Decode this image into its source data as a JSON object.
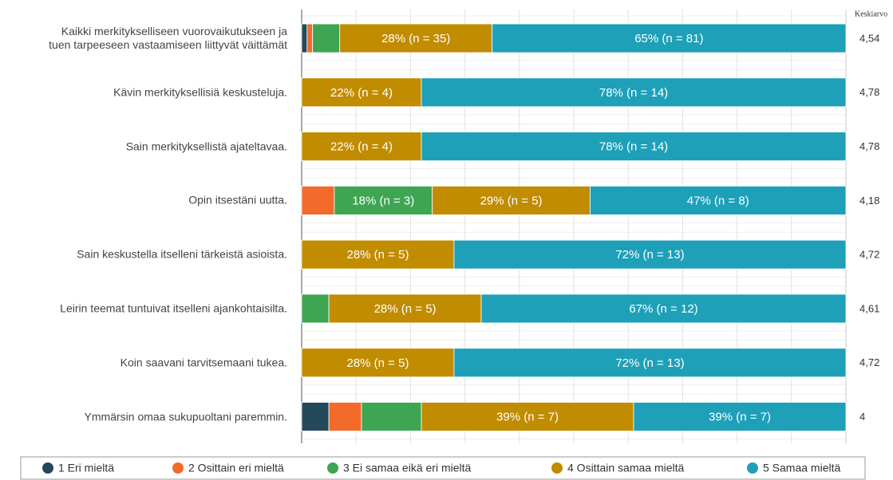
{
  "chart_data": {
    "type": "stacked-bar-horizontal",
    "categories": [
      "Kaikki merkitykselliseen vuorovaikutukseen ja\ntuen tarpeeseen vastaamiseen liittyvät väittämät",
      "Kävin merkityksellisiä keskusteluja.",
      "Sain merkityksellistä ajateltavaa.",
      "Opin itsestäni uutta.",
      "Sain keskustella itselleni tärkeistä asioista.",
      "Leirin teemat tuntuivat itselleni ajankohtaisilta.",
      "Koin saavani tarvitsemaani tukea.",
      "Ymmärsin omaa sukupuoltani paremmin."
    ],
    "series": [
      {
        "name": "1 Eri mieltä",
        "color": "#24495a",
        "values": [
          1,
          null,
          null,
          null,
          null,
          null,
          null,
          5
        ],
        "value_labels": [
          null,
          null,
          null,
          null,
          null,
          null,
          null,
          null
        ]
      },
      {
        "name": "2 Osittain eri mieltä",
        "color": "#f26b2a",
        "values": [
          1,
          null,
          null,
          6,
          null,
          null,
          null,
          6
        ],
        "value_labels": [
          null,
          null,
          null,
          null,
          null,
          null,
          null,
          null
        ]
      },
      {
        "name": "3 Ei samaa eikä eri mieltä",
        "color": "#3ea653",
        "values": [
          5,
          null,
          null,
          18,
          null,
          5,
          null,
          11
        ],
        "value_labels": [
          null,
          null,
          null,
          "18% (n = 3)",
          null,
          null,
          null,
          null
        ]
      },
      {
        "name": "4 Osittain samaa mieltä",
        "color": "#c18c00",
        "values": [
          28,
          22,
          22,
          29,
          28,
          28,
          28,
          39
        ],
        "value_labels": [
          "28% (n = 35)",
          "22% (n = 4)",
          "22% (n = 4)",
          "29% (n = 5)",
          "28% (n = 5)",
          "28% (n = 5)",
          "28% (n = 5)",
          "39% (n = 7)"
        ]
      },
      {
        "name": "5 Samaa mieltä",
        "color": "#1ea0b9",
        "values": [
          65,
          78,
          78,
          47,
          72,
          67,
          72,
          39
        ],
        "value_labels": [
          "65% (n = 81)",
          "78% (n = 14)",
          "78% (n = 14)",
          "47% (n = 8)",
          "72% (n = 13)",
          "67% (n = 12)",
          "72% (n = 13)",
          "39% (n = 7)"
        ]
      }
    ],
    "xlim": [
      0,
      100
    ],
    "xticks": [
      0,
      10,
      20,
      30,
      40,
      50,
      60,
      70,
      80,
      90,
      100
    ],
    "grid": true,
    "mean_header": "Keskiarvo",
    "means": [
      "4,54",
      "4,78",
      "4,78",
      "4,18",
      "4,72",
      "4,61",
      "4,72",
      "4"
    ],
    "legend": "bottom"
  }
}
